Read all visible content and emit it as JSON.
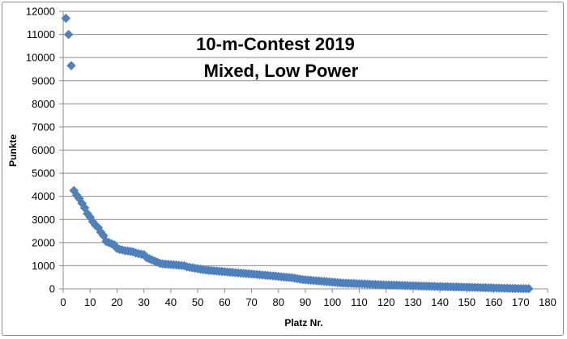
{
  "chart_data": {
    "type": "scatter",
    "title_line1": "10-m-Contest 2019",
    "title_line2": "Mixed, Low Power",
    "xlabel": "Platz Nr.",
    "ylabel": "Punkte",
    "xlim": [
      0,
      180
    ],
    "ylim": [
      0,
      12000
    ],
    "xticks": [
      0,
      10,
      20,
      30,
      40,
      50,
      60,
      70,
      80,
      90,
      100,
      110,
      120,
      130,
      140,
      150,
      160,
      170,
      180
    ],
    "yticks": [
      0,
      1000,
      2000,
      3000,
      4000,
      5000,
      6000,
      7000,
      8000,
      9000,
      10000,
      11000,
      12000
    ],
    "grid": "horizontal",
    "marker": "diamond",
    "color": "#4f81bd",
    "series": [
      {
        "name": "",
        "x": [
          1,
          2,
          3,
          4,
          5,
          6,
          7,
          8,
          9,
          10,
          11,
          12,
          13,
          14,
          15,
          16,
          17,
          18,
          19,
          20,
          21,
          22,
          23,
          24,
          25,
          26,
          27,
          28,
          29,
          30,
          31,
          32,
          33,
          34,
          35,
          36,
          37,
          38,
          39,
          40,
          41,
          42,
          43,
          44,
          45,
          46,
          47,
          48,
          49,
          50,
          51,
          52,
          53,
          54,
          55,
          56,
          57,
          58,
          59,
          60,
          61,
          62,
          63,
          64,
          65,
          66,
          67,
          68,
          69,
          70,
          71,
          72,
          73,
          74,
          75,
          76,
          77,
          78,
          79,
          80,
          81,
          82,
          83,
          84,
          85,
          86,
          87,
          88,
          89,
          90,
          91,
          92,
          93,
          94,
          95,
          96,
          97,
          98,
          99,
          100,
          101,
          102,
          103,
          104,
          105,
          106,
          107,
          108,
          109,
          110,
          111,
          112,
          113,
          114,
          115,
          116,
          117,
          118,
          119,
          120,
          121,
          122,
          123,
          124,
          125,
          126,
          127,
          128,
          129,
          130,
          131,
          132,
          133,
          134,
          135,
          136,
          137,
          138,
          139,
          140,
          141,
          142,
          143,
          144,
          145,
          146,
          147,
          148,
          149,
          150,
          151,
          152,
          153,
          154,
          155,
          156,
          157,
          158,
          159,
          160,
          161,
          162,
          163,
          164,
          165,
          166,
          167,
          168,
          169,
          170,
          171,
          172,
          173
        ],
        "y": [
          11700,
          11000,
          9650,
          4250,
          4050,
          3900,
          3700,
          3500,
          3250,
          3100,
          2900,
          2750,
          2650,
          2450,
          2300,
          2050,
          2000,
          1950,
          1900,
          1750,
          1700,
          1680,
          1650,
          1640,
          1620,
          1600,
          1550,
          1520,
          1500,
          1480,
          1350,
          1300,
          1250,
          1200,
          1150,
          1100,
          1080,
          1070,
          1060,
          1050,
          1040,
          1030,
          1020,
          1010,
          1000,
          950,
          930,
          910,
          890,
          870,
          850,
          830,
          815,
          800,
          790,
          780,
          770,
          760,
          750,
          740,
          730,
          720,
          710,
          700,
          690,
          680,
          670,
          660,
          650,
          640,
          630,
          620,
          610,
          600,
          590,
          580,
          570,
          560,
          550,
          540,
          520,
          510,
          500,
          490,
          480,
          460,
          440,
          420,
          400,
          390,
          380,
          370,
          360,
          350,
          340,
          330,
          320,
          310,
          300,
          290,
          280,
          270,
          260,
          250,
          245,
          240,
          235,
          230,
          225,
          220,
          215,
          210,
          205,
          200,
          195,
          190,
          185,
          180,
          176,
          172,
          168,
          164,
          160,
          156,
          152,
          148,
          144,
          140,
          136,
          132,
          128,
          124,
          120,
          117,
          114,
          111,
          108,
          105,
          102,
          99,
          96,
          93,
          90,
          87,
          84,
          81,
          78,
          75,
          72,
          69,
          66,
          63,
          60,
          57,
          54,
          51,
          48,
          45,
          42,
          39,
          36,
          33,
          30,
          27,
          24,
          21,
          18,
          16,
          14,
          12,
          10,
          8,
          6
        ]
      }
    ]
  }
}
